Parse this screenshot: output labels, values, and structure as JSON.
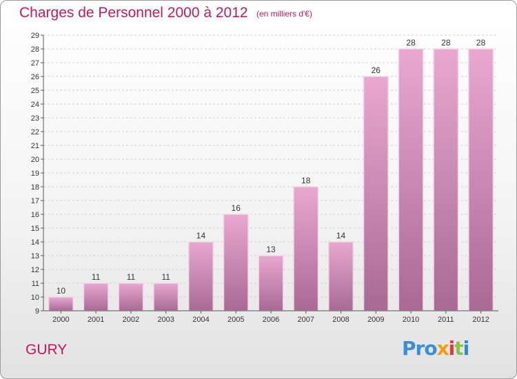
{
  "title": "Charges de Personnel 2000 à 2012",
  "subtitle": "(en milliers d'€)",
  "commune": "GURY",
  "logo": {
    "p1": "Pro",
    "p2": "x",
    "p3": "i",
    "p4": "t",
    "p5": "i"
  },
  "colors": {
    "accent": "#c2185b",
    "bar_top": "#e8a8d0",
    "bar_bottom": "#a86a94"
  },
  "chart_data": {
    "type": "bar",
    "categories": [
      "2000",
      "2001",
      "2002",
      "2003",
      "2004",
      "2005",
      "2006",
      "2007",
      "2008",
      "2009",
      "2010",
      "2011",
      "2012"
    ],
    "values": [
      10,
      11,
      11,
      11,
      14,
      16,
      13,
      18,
      14,
      26,
      28,
      28,
      28
    ],
    "ylim": [
      9,
      29
    ],
    "yticks": [
      9,
      10,
      11,
      12,
      13,
      14,
      15,
      16,
      17,
      18,
      19,
      20,
      21,
      22,
      23,
      24,
      25,
      26,
      27,
      28,
      29
    ],
    "grid": true
  }
}
